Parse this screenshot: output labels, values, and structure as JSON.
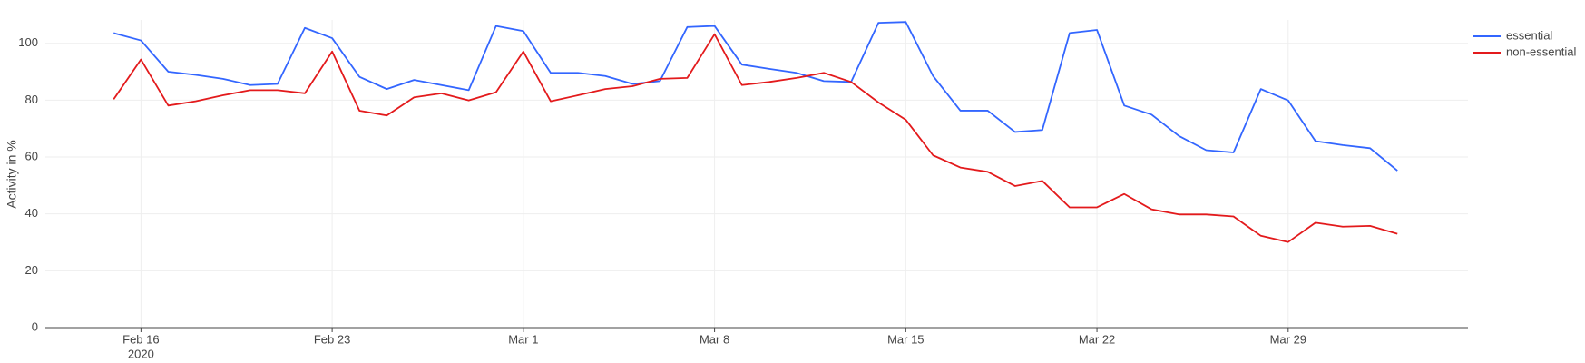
{
  "chart_data": {
    "type": "line",
    "y_label": "Activity in %",
    "x": [
      "2020-02-15",
      "2020-02-16",
      "2020-02-17",
      "2020-02-18",
      "2020-02-19",
      "2020-02-20",
      "2020-02-21",
      "2020-02-22",
      "2020-02-23",
      "2020-02-24",
      "2020-02-25",
      "2020-02-26",
      "2020-02-27",
      "2020-02-28",
      "2020-02-29",
      "2020-03-01",
      "2020-03-02",
      "2020-03-03",
      "2020-03-04",
      "2020-03-05",
      "2020-03-06",
      "2020-03-07",
      "2020-03-08",
      "2020-03-09",
      "2020-03-10",
      "2020-03-11",
      "2020-03-12",
      "2020-03-13",
      "2020-03-14",
      "2020-03-15",
      "2020-03-16",
      "2020-03-17",
      "2020-03-18",
      "2020-03-19",
      "2020-03-20",
      "2020-03-21",
      "2020-03-22",
      "2020-03-23",
      "2020-03-24",
      "2020-03-25",
      "2020-03-26",
      "2020-03-27",
      "2020-03-28",
      "2020-03-29",
      "2020-03-30",
      "2020-03-31",
      "2020-04-01",
      "2020-04-02"
    ],
    "series": [
      {
        "name": "essential",
        "color": "#3366ff",
        "values": [
          103.6,
          101,
          90,
          88.9,
          87.5,
          85.3,
          85.7,
          105.4,
          101.8,
          88.2,
          83.9,
          87.1,
          85.3,
          83.5,
          106.1,
          104.3,
          89.6,
          89.6,
          88.5,
          85.7,
          86.7,
          105.7,
          106.1,
          92.5,
          91,
          89.6,
          86.7,
          86.4,
          107.2,
          107.5,
          88.5,
          76.3,
          76.3,
          68.8,
          69.5,
          103.6,
          104.7,
          78.1,
          74.9,
          67.4,
          62.4,
          61.6,
          83.9,
          79.9,
          65.6,
          64.2,
          63.1,
          55.2
        ]
      },
      {
        "name": "non-essential",
        "color": "#e31a1c",
        "values": [
          80.3,
          94.3,
          78.1,
          79.6,
          81.7,
          83.5,
          83.5,
          82.4,
          97.1,
          76.3,
          74.6,
          81,
          82.4,
          79.9,
          82.8,
          97.1,
          79.6,
          81.7,
          83.9,
          84.9,
          87.5,
          87.8,
          103.2,
          85.3,
          86.4,
          87.8,
          89.6,
          86.4,
          79.2,
          73.1,
          60.6,
          56.3,
          54.8,
          49.8,
          51.6,
          42.3,
          42.3,
          47,
          41.6,
          39.8,
          39.8,
          39.1,
          32.3,
          30.1,
          36.9,
          35.5,
          35.8,
          33
        ]
      }
    ],
    "xlim": [
      "2020-02-12T12:00",
      "2020-04-04T14:00"
    ],
    "xticks": [
      {
        "value": "2020-02-16",
        "label": "Feb 16",
        "sublabel": "2020"
      },
      {
        "value": "2020-02-23",
        "label": "Feb 23"
      },
      {
        "value": "2020-03-01",
        "label": "Mar 1"
      },
      {
        "value": "2020-03-08",
        "label": "Mar 8"
      },
      {
        "value": "2020-03-15",
        "label": "Mar 15"
      },
      {
        "value": "2020-03-22",
        "label": "Mar 22"
      },
      {
        "value": "2020-03-29",
        "label": "Mar 29"
      }
    ],
    "ylim": [
      0,
      108.2
    ],
    "yticks": [
      0,
      20,
      40,
      60,
      80,
      100
    ],
    "grid": true,
    "legend": "top-right"
  }
}
